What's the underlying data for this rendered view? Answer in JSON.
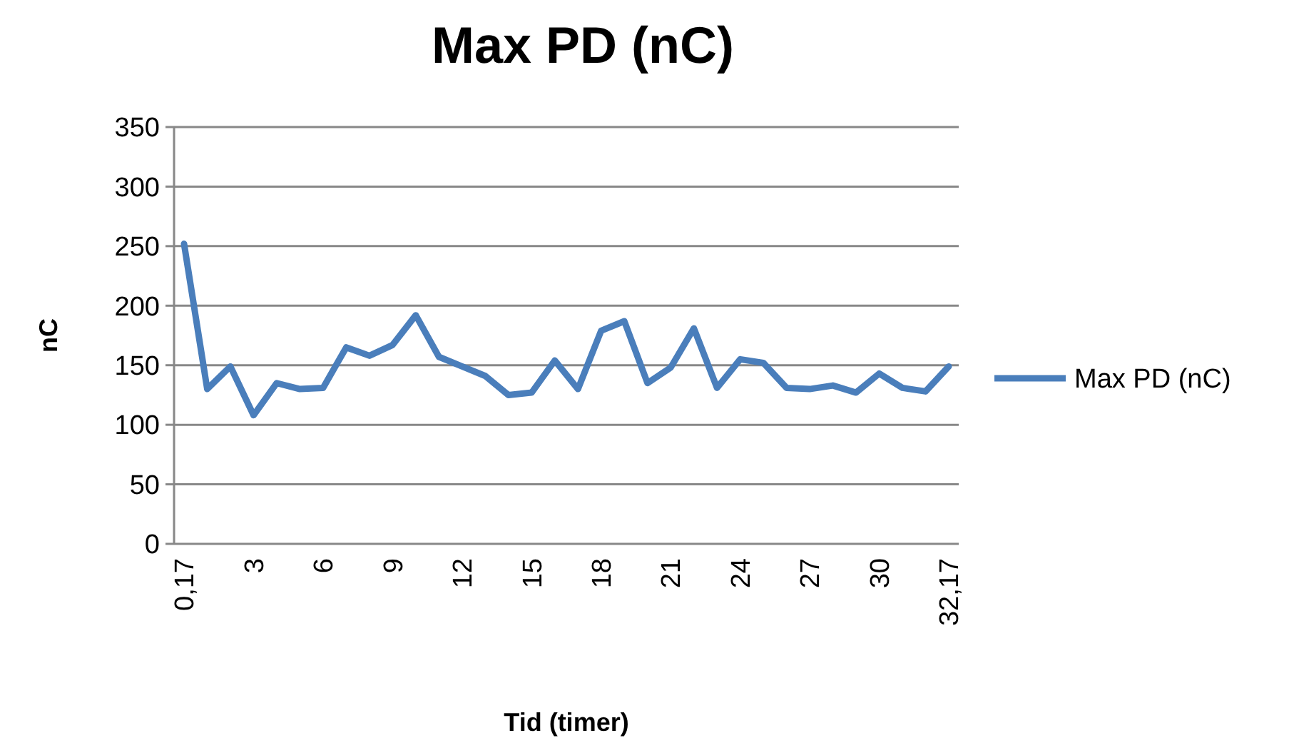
{
  "chart_data": {
    "type": "line",
    "title": "Max PD (nC)",
    "xlabel": "Tid (timer)",
    "ylabel": "nC",
    "categories": [
      "0,17",
      null,
      null,
      "3",
      null,
      null,
      "6",
      null,
      null,
      "9",
      null,
      null,
      "12",
      null,
      null,
      "15",
      null,
      null,
      "18",
      null,
      null,
      "21",
      null,
      null,
      "24",
      null,
      null,
      "27",
      null,
      null,
      "30",
      null,
      null,
      "32,17"
    ],
    "series": [
      {
        "name": "Max PD (nC)",
        "color": "#4a7ebb",
        "values": [
          252,
          130,
          149,
          108,
          135,
          130,
          131,
          165,
          158,
          167,
          192,
          157,
          149,
          141,
          125,
          127,
          154,
          130,
          179,
          187,
          135,
          148,
          181,
          131,
          155,
          152,
          131,
          130,
          133,
          127,
          143,
          131,
          128,
          149
        ]
      }
    ],
    "ylim": [
      0,
      350
    ],
    "yticks": [
      0,
      50,
      100,
      150,
      200,
      250,
      300,
      350
    ],
    "grid": "y",
    "legend": "right",
    "marker": "none",
    "line_style": "solid"
  }
}
